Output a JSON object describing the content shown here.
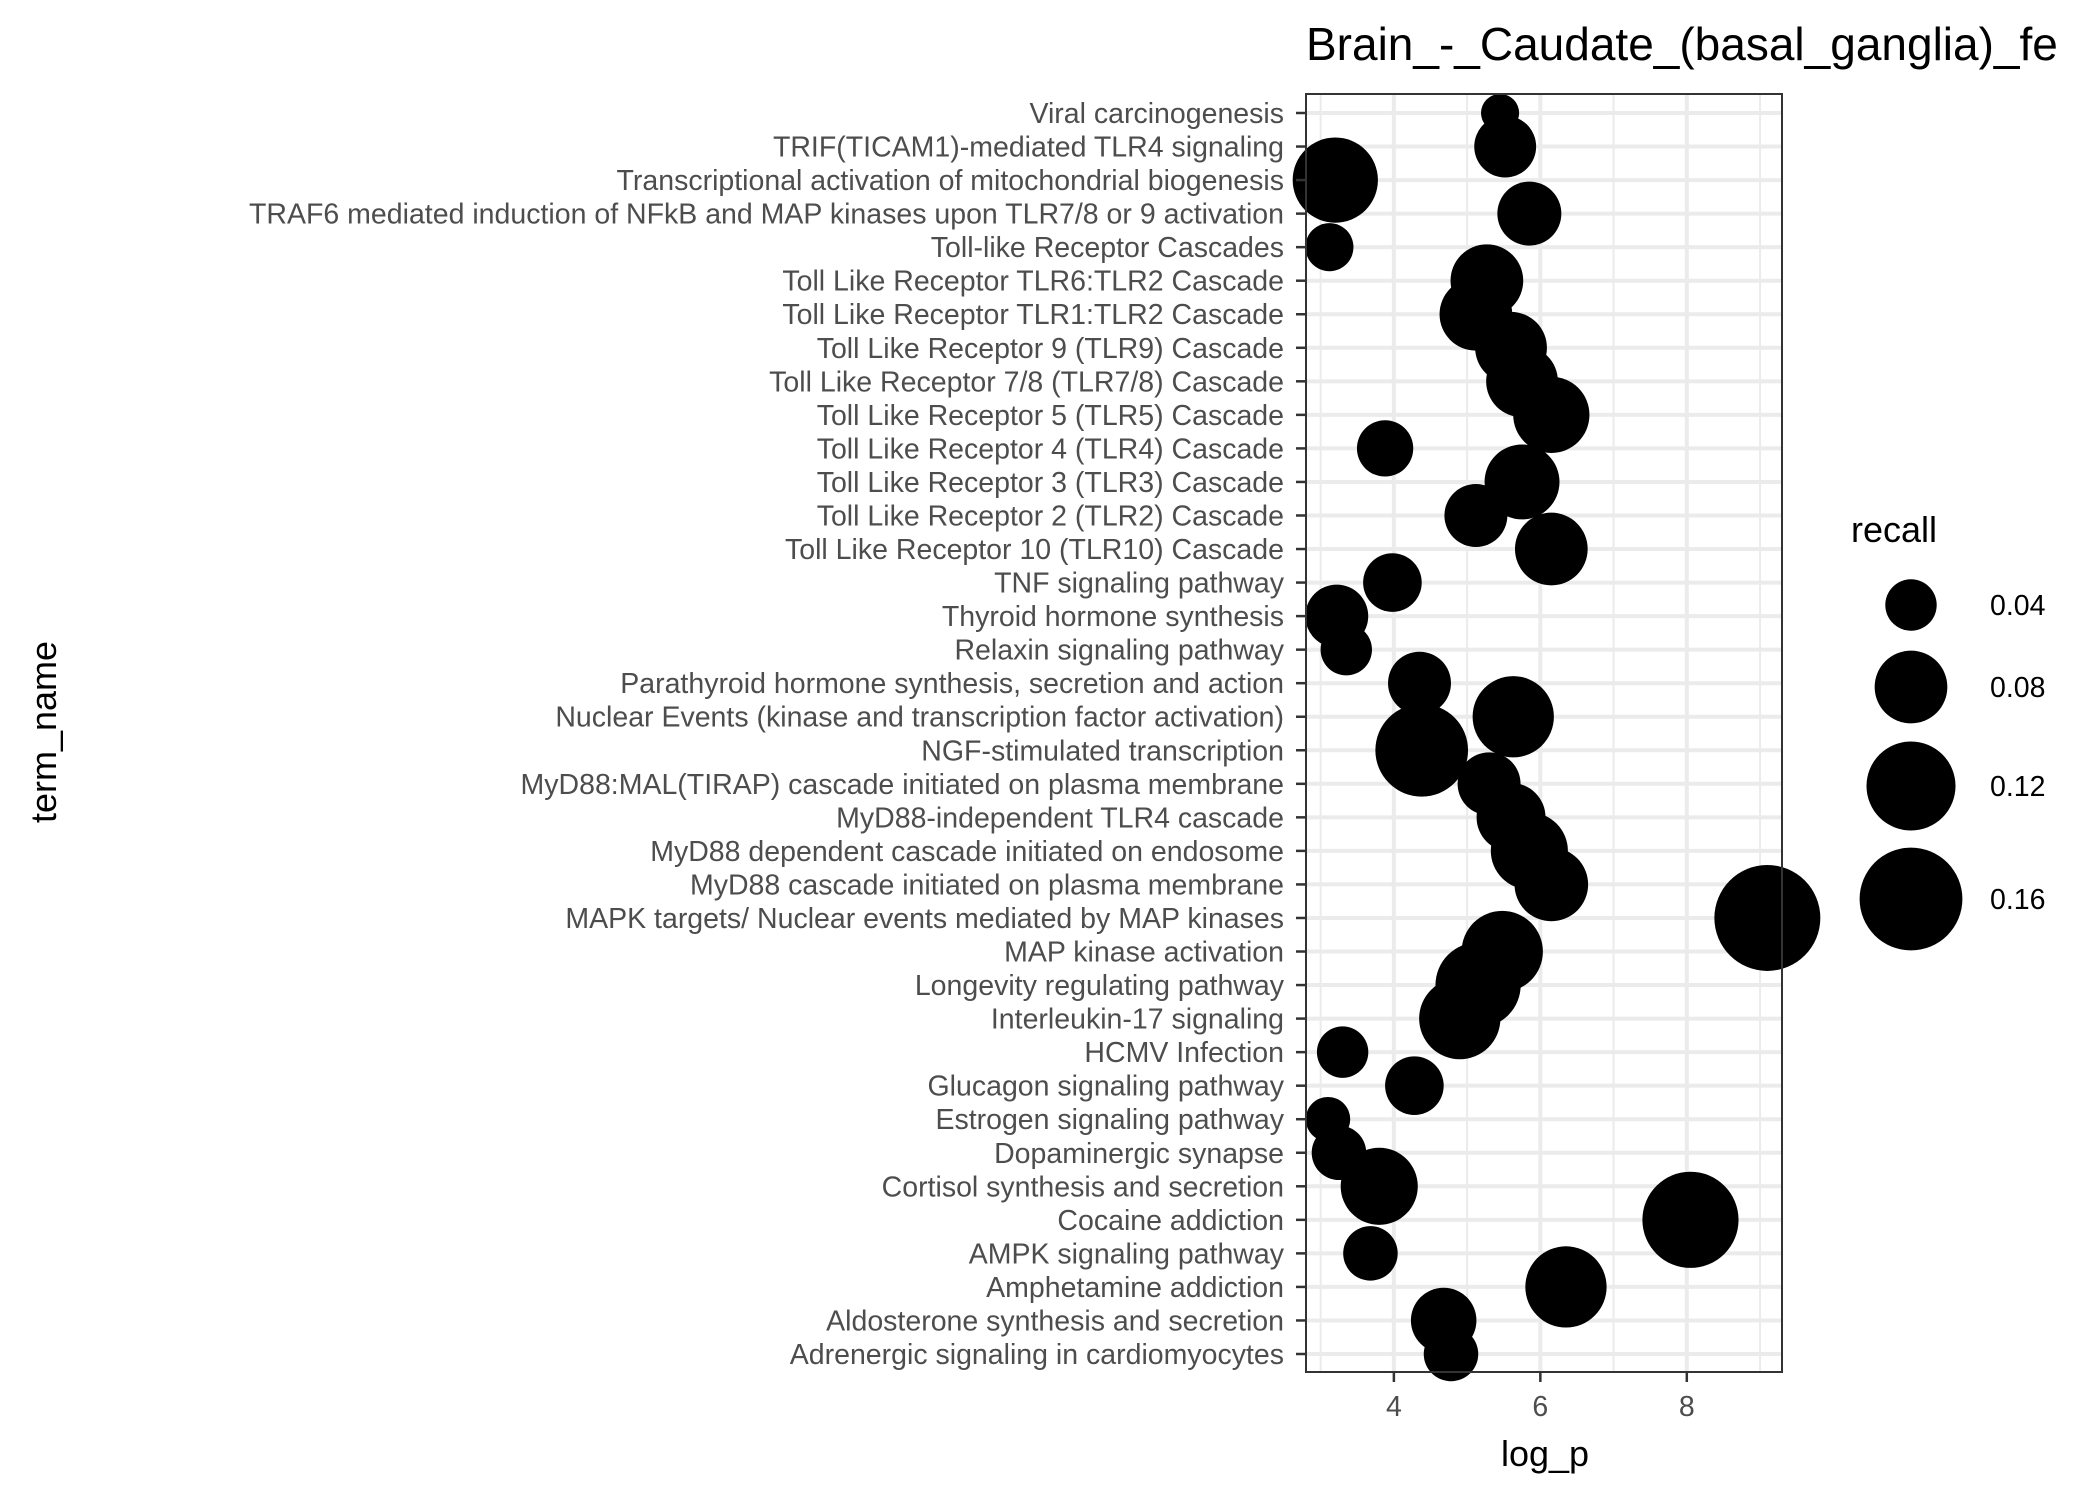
{
  "chart_data": {
    "type": "scatter",
    "title": "Brain_-_Caudate_(basal_ganglia)_fe",
    "xlabel": "log_p",
    "ylabel": "term_name",
    "xlim": [
      2.8,
      9.3
    ],
    "x_ticks": [
      4,
      6,
      8
    ],
    "grid": true,
    "legend": {
      "title": "recall",
      "position": "right",
      "entries": [
        0.04,
        0.08,
        0.12,
        0.16
      ]
    },
    "colors": {
      "point": "#000000",
      "grid": "#ebebeb",
      "panel_border": "#333333"
    },
    "categories": [
      "Viral carcinogenesis",
      "TRIF(TICAM1)-mediated TLR4 signaling ",
      "Transcriptional activation of mitochondrial biogenesis",
      "TRAF6 mediated induction of NFkB and MAP kinases upon TLR7/8 or 9 activation",
      "Toll-like Receptor Cascades",
      "Toll Like Receptor TLR6:TLR2 Cascade",
      "Toll Like Receptor TLR1:TLR2 Cascade",
      "Toll Like Receptor 9 (TLR9) Cascade",
      "Toll Like Receptor 7/8 (TLR7/8) Cascade",
      "Toll Like Receptor 5 (TLR5) Cascade",
      "Toll Like Receptor 4 (TLR4) Cascade",
      "Toll Like Receptor 3 (TLR3) Cascade",
      "Toll Like Receptor 2 (TLR2) Cascade",
      "Toll Like Receptor 10 (TLR10) Cascade",
      "TNF signaling pathway",
      "Thyroid hormone synthesis",
      "Relaxin signaling pathway",
      "Parathyroid hormone synthesis, secretion and action",
      "Nuclear Events (kinase and transcription factor activation)",
      "NGF-stimulated transcription",
      "MyD88:MAL(TIRAP) cascade initiated on plasma membrane",
      "MyD88-independent TLR4 cascade ",
      "MyD88 dependent cascade initiated on endosome",
      "MyD88 cascade initiated on plasma membrane",
      "MAPK targets/ Nuclear events mediated by MAP kinases",
      "MAP kinase activation",
      "Longevity regulating pathway",
      "Interleukin-17 signaling",
      "HCMV Infection",
      "Glucagon signaling pathway",
      "Estrogen signaling pathway",
      "Dopaminergic synapse",
      "Cortisol synthesis and secretion",
      "Cocaine addiction",
      "AMPK signaling pathway",
      "Amphetamine addiction",
      "Aldosterone synthesis and secretion",
      "Adrenergic signaling in cardiomyocytes"
    ],
    "series": [
      {
        "x": [
          5.45,
          5.52,
          3.2,
          5.85,
          3.12,
          5.27,
          5.12,
          5.6,
          5.75,
          6.15,
          3.88,
          5.75,
          5.12,
          6.15,
          3.98,
          3.22,
          3.35,
          4.35,
          5.63,
          4.38,
          5.3,
          5.6,
          5.85,
          6.15,
          9.1,
          5.48,
          5.15,
          4.9,
          3.3,
          4.28,
          3.1,
          3.25,
          3.8,
          8.05,
          3.68,
          6.35,
          4.68,
          4.78
        ],
        "recall": [
          0.022,
          0.058,
          0.11,
          0.062,
          0.035,
          0.08,
          0.08,
          0.078,
          0.078,
          0.088,
          0.048,
          0.085,
          0.06,
          0.08,
          0.052,
          0.06,
          0.04,
          0.06,
          0.1,
          0.13,
          0.06,
          0.072,
          0.09,
          0.082,
          0.17,
          0.1,
          0.11,
          0.1,
          0.04,
          0.052,
          0.03,
          0.045,
          0.09,
          0.14,
          0.045,
          0.1,
          0.065,
          0.045
        ]
      }
    ]
  }
}
